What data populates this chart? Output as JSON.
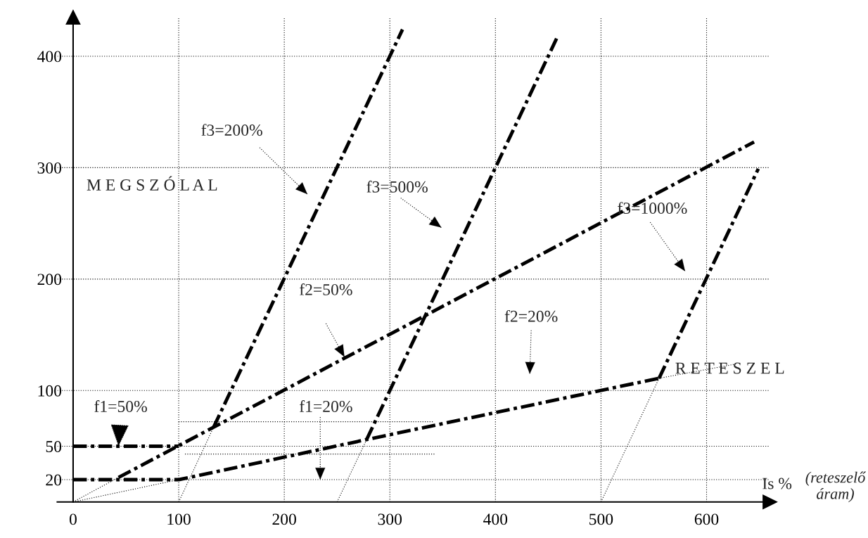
{
  "chart_data": {
    "type": "line",
    "xlabel": "Is %",
    "xlim": [
      -15,
      660
    ],
    "ylim": [
      0,
      435
    ],
    "xticks": [
      0,
      100,
      200,
      300,
      400,
      500,
      600
    ],
    "yticks": [
      20,
      50,
      100,
      200,
      300,
      400
    ],
    "grid": true,
    "legend": false,
    "marker": "none",
    "series": [
      {
        "color": "#000000",
        "line_style": "dashdot",
        "x": [
          0,
          100
        ],
        "values": [
          50,
          50
        ]
      },
      {
        "color": "#000000",
        "line_style": "dashdot",
        "x": [
          0,
          100,
          278,
          555
        ],
        "values": [
          20,
          20,
          56,
          111
        ]
      },
      {
        "color": "#000000",
        "line_style": "dashdot",
        "x": [
          43,
          645
        ],
        "values": [
          22,
          323
        ]
      },
      {
        "color": "#000000",
        "line_style": "dashdot",
        "x": [
          133,
          312
        ],
        "values": [
          67,
          424
        ]
      },
      {
        "color": "#000000",
        "line_style": "dashdot",
        "x": [
          278,
          459
        ],
        "values": [
          56,
          418
        ]
      },
      {
        "color": "#000000",
        "line_style": "dashdot",
        "x": [
          555,
          649
        ],
        "values": [
          111,
          299
        ]
      },
      {
        "color": "#000000",
        "line_style": "dotted",
        "x": [
          0,
          43
        ],
        "values": [
          0,
          22
        ]
      },
      {
        "color": "#000000",
        "line_style": "dotted",
        "x": [
          0,
          100
        ],
        "values": [
          0,
          20
        ]
      },
      {
        "color": "#000000",
        "line_style": "dotted",
        "x": [
          100,
          133
        ],
        "values": [
          0,
          67
        ]
      },
      {
        "color": "#000000",
        "line_style": "dotted",
        "x": [
          250,
          278
        ],
        "values": [
          0,
          56
        ]
      },
      {
        "color": "#000000",
        "line_style": "dotted",
        "x": [
          500,
          555
        ],
        "values": [
          0,
          111
        ]
      },
      {
        "color": "#000000",
        "line_style": "dotted",
        "x": [
          555,
          629
        ],
        "values": [
          111,
          124
        ]
      },
      {
        "color": "#000000",
        "line_style": "dotted",
        "x": [
          100,
          341
        ],
        "values": [
          72,
          72
        ]
      },
      {
        "color": "#000000",
        "line_style": "dotted",
        "x": [
          106,
          343
        ],
        "values": [
          43,
          43
        ]
      }
    ],
    "annotations": [
      "f3=200%",
      "f3=500%",
      "f3=1000%",
      "f2=50%",
      "f2=20%",
      {
        "text": "f1=50%",
        "x": 43,
        "y": 50
      },
      "f1=20%",
      "M E G S Z Ó L A L",
      "R E T E S Z E L",
      "(reteszelő\náram)"
    ]
  }
}
